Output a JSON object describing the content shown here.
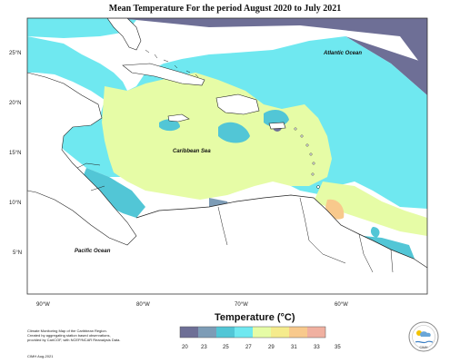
{
  "title": "Mean Temperature For the period August 2020 to July 2021",
  "lat_labels": [
    "25°N",
    "20°N",
    "15°N",
    "10°N",
    "5°N"
  ],
  "lon_labels": [
    "90°W",
    "80°W",
    "70°W",
    "60°W"
  ],
  "ocean_labels": {
    "atlantic": "Atlantic Ocean",
    "caribbean": "Caribbean Sea",
    "pacific": "Pacific Ocean"
  },
  "legend": {
    "title": "Temperature (°C)",
    "ticks": [
      "20",
      "23",
      "25",
      "27",
      "29",
      "31",
      "33",
      "35"
    ],
    "colors": [
      "#6e6f96",
      "#7d9cb6",
      "#52c6d6",
      "#6fe8f0",
      "#e6fca6",
      "#f5eb8c",
      "#f8c98c",
      "#f0b0a0"
    ]
  },
  "credit": {
    "line1": "Climate Monitoring Map of the Caribbean Region.",
    "line2": "Created by aggregating station based observations,",
    "line3": "provided by CariCOF, with NCEP/NCAR Reanalysis Data.",
    "footer": "CIMH Aug-2021"
  },
  "logo_text": "CIMH"
}
